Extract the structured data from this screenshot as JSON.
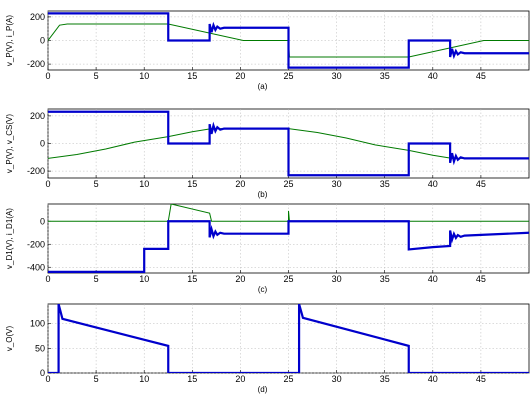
{
  "chart_data": [
    {
      "type": "line",
      "panel": "(a)",
      "ylabel": "v_P(V), i_P(A)",
      "xlim": [
        0,
        50
      ],
      "ylim": [
        -250,
        250
      ],
      "xticks": [
        0,
        5,
        10,
        15,
        20,
        25,
        30,
        35,
        40,
        45
      ],
      "yticks": [
        -200,
        0,
        200
      ],
      "grid": true,
      "series": [
        {
          "color": "#0000cc",
          "width": 2.2,
          "x": [
            0,
            12.5,
            12.5,
            16.8,
            16.8,
            17.0,
            17.2,
            17.4,
            17.6,
            17.9,
            18.3,
            25.0,
            25.0,
            37.5,
            37.5,
            41.8,
            41.8,
            42.0,
            42.2,
            42.4,
            42.6,
            42.9,
            43.3,
            50
          ],
          "y": [
            230,
            230,
            0,
            0,
            140,
            70,
            130,
            90,
            118,
            100,
            108,
            108,
            -230,
            -230,
            0,
            0,
            -140,
            -70,
            -130,
            -90,
            -118,
            -100,
            -108,
            -108
          ]
        },
        {
          "color": "#007a00",
          "width": 1.0,
          "x": [
            0,
            1.2,
            2,
            12.5,
            20.3,
            25,
            25.1,
            29,
            37.5,
            45.3,
            50
          ],
          "y": [
            0,
            130,
            140,
            140,
            0,
            0,
            -140,
            -140,
            -140,
            0,
            0
          ]
        }
      ]
    },
    {
      "type": "line",
      "panel": "(b)",
      "ylabel": "v_P(V), v_CS(V)",
      "xlim": [
        0,
        50
      ],
      "ylim": [
        -250,
        250
      ],
      "xticks": [
        0,
        5,
        10,
        15,
        20,
        25,
        30,
        35,
        40,
        45
      ],
      "yticks": [
        -200,
        0,
        200
      ],
      "grid": true,
      "series": [
        {
          "color": "#0000cc",
          "width": 2.2,
          "x": [
            0,
            12.5,
            12.5,
            16.8,
            16.8,
            17.0,
            17.2,
            17.4,
            17.6,
            17.9,
            18.3,
            25.0,
            25.0,
            37.5,
            37.5,
            41.8,
            41.8,
            42.0,
            42.2,
            42.4,
            42.6,
            42.9,
            43.3,
            50
          ],
          "y": [
            230,
            230,
            0,
            0,
            140,
            70,
            130,
            90,
            118,
            100,
            108,
            108,
            -230,
            -230,
            0,
            0,
            -140,
            -70,
            -130,
            -90,
            -118,
            -100,
            -108,
            -108
          ]
        },
        {
          "color": "#007a00",
          "width": 1.0,
          "x": [
            0,
            3,
            6,
            9,
            12.5,
            15,
            17,
            25,
            28,
            31,
            34,
            37.5,
            40,
            42,
            50
          ],
          "y": [
            -108,
            -80,
            -40,
            10,
            50,
            85,
            108,
            108,
            80,
            40,
            -10,
            -50,
            -85,
            -108,
            -108
          ]
        }
      ]
    },
    {
      "type": "line",
      "panel": "(c)",
      "ylabel": "v_D1(V), i_D1(A)",
      "xlim": [
        0,
        50
      ],
      "ylim": [
        -450,
        150
      ],
      "xticks": [
        0,
        5,
        10,
        15,
        20,
        25,
        30,
        35,
        40,
        45
      ],
      "yticks": [
        -400,
        -200,
        0
      ],
      "grid": true,
      "series": [
        {
          "color": "#0000cc",
          "width": 2.2,
          "x": [
            0,
            10,
            10,
            12.5,
            12.5,
            16.8,
            16.8,
            17.0,
            17.2,
            17.4,
            17.6,
            17.9,
            18.3,
            25.0,
            25.0,
            37.5,
            37.5,
            40,
            41.8,
            41.8,
            42.0,
            42.2,
            42.4,
            42.6,
            42.9,
            43.3,
            50
          ],
          "y": [
            -440,
            -440,
            -240,
            -240,
            0,
            0,
            -140,
            -70,
            -130,
            -90,
            -118,
            -100,
            -108,
            -108,
            0,
            0,
            -245,
            -225,
            -215,
            -80,
            -160,
            -110,
            -145,
            -120,
            -135,
            -125,
            -100
          ]
        },
        {
          "color": "#007a00",
          "width": 1.0,
          "x": [
            0,
            12.5,
            12.8,
            16.8,
            17,
            25,
            25,
            25.1,
            25.5,
            50
          ],
          "y": [
            0,
            0,
            150,
            70,
            0,
            0,
            90,
            0,
            0,
            0
          ]
        }
      ]
    },
    {
      "type": "line",
      "panel": "(d)",
      "ylabel": "v_O(V)",
      "xlim": [
        0,
        50
      ],
      "ylim": [
        0,
        140
      ],
      "xticks": [
        0,
        5,
        10,
        15,
        20,
        25,
        30,
        35,
        40,
        45
      ],
      "yticks": [
        0,
        50,
        100
      ],
      "grid": true,
      "series": [
        {
          "color": "#0000cc",
          "width": 2.2,
          "x": [
            0,
            1.1,
            1.1,
            1.5,
            12.5,
            12.5,
            26.1,
            26.1,
            26.5,
            37.5,
            37.5,
            50
          ],
          "y": [
            0,
            0,
            140,
            110,
            55,
            0,
            0,
            140,
            112,
            55,
            0,
            0
          ]
        }
      ]
    }
  ]
}
